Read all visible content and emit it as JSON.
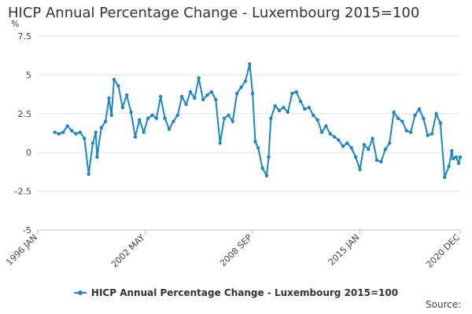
{
  "page": {
    "title": "HICP Annual Percentage Change - Luxembourg 2015=100",
    "legend_label": "HICP Annual Percentage Change - Luxembourg 2015=100",
    "source_label": "Source:"
  },
  "colors": {
    "series": "#1a86c8",
    "grid": "#e3e3e3",
    "axis": "#bfbfbf"
  },
  "chart_data": {
    "type": "line",
    "title": "HICP Annual Percentage Change - Luxembourg 2015=100",
    "xlabel": "",
    "ylabel": "%",
    "ylim": [
      -5,
      7.5
    ],
    "yticks": [
      -5,
      -2.5,
      0,
      2.5,
      5,
      7.5
    ],
    "ytick_labels": [
      "-5",
      "-2.5",
      "0",
      "2.5",
      "5",
      "7.5"
    ],
    "xlim": [
      1996.0,
      2020.917
    ],
    "xticks": [
      {
        "label": "1996 JAN",
        "x": 1996.0
      },
      {
        "label": "2002 MAY",
        "x": 2002.333
      },
      {
        "label": "2008 SEP",
        "x": 2008.667
      },
      {
        "label": "2015 JAN",
        "x": 2015.0
      },
      {
        "label": "2020 DEC",
        "x": 2020.917
      }
    ],
    "grid": true,
    "legend": "bottom-center",
    "series": [
      {
        "name": "HICP Annual Percentage Change - Luxembourg 2015=100",
        "x": [
          1997.0,
          1997.25,
          1997.5,
          1997.75,
          1998.0,
          1998.25,
          1998.5,
          1998.75,
          1999.0,
          1999.25,
          1999.42,
          1999.5,
          1999.75,
          2000.0,
          2000.2,
          2000.35,
          2000.5,
          2000.75,
          2001.0,
          2001.25,
          2001.5,
          2001.75,
          2002.0,
          2002.25,
          2002.5,
          2002.75,
          2003.0,
          2003.25,
          2003.5,
          2003.75,
          2004.0,
          2004.25,
          2004.5,
          2004.75,
          2005.0,
          2005.25,
          2005.5,
          2005.75,
          2006.0,
          2006.25,
          2006.5,
          2006.75,
          2007.0,
          2007.25,
          2007.5,
          2007.75,
          2008.0,
          2008.25,
          2008.5,
          2008.67,
          2008.83,
          2009.0,
          2009.25,
          2009.5,
          2009.62,
          2009.75,
          2010.0,
          2010.25,
          2010.5,
          2010.75,
          2011.0,
          2011.25,
          2011.5,
          2011.75,
          2012.0,
          2012.25,
          2012.5,
          2012.75,
          2013.0,
          2013.25,
          2013.5,
          2013.75,
          2014.0,
          2014.25,
          2014.5,
          2014.75,
          2015.0,
          2015.25,
          2015.5,
          2015.75,
          2016.0,
          2016.25,
          2016.5,
          2016.75,
          2017.0,
          2017.25,
          2017.5,
          2017.75,
          2018.0,
          2018.25,
          2018.5,
          2018.75,
          2019.0,
          2019.25,
          2019.5,
          2019.75,
          2020.0,
          2020.25,
          2020.42,
          2020.5,
          2020.67,
          2020.83,
          2020.917
        ],
        "values": [
          1.3,
          1.2,
          1.3,
          1.7,
          1.4,
          1.2,
          1.3,
          0.9,
          -1.4,
          0.6,
          1.3,
          -0.3,
          1.6,
          2.0,
          3.5,
          2.4,
          4.7,
          4.3,
          2.9,
          3.7,
          2.6,
          1.0,
          2.1,
          1.3,
          2.2,
          2.4,
          2.2,
          3.6,
          2.2,
          1.5,
          2.0,
          2.4,
          3.6,
          3.1,
          3.9,
          3.5,
          4.8,
          3.4,
          3.7,
          3.9,
          3.4,
          0.6,
          2.2,
          2.4,
          2.0,
          3.8,
          4.2,
          4.6,
          5.7,
          3.8,
          0.7,
          0.3,
          -1.0,
          -1.5,
          -0.3,
          2.2,
          3.0,
          2.7,
          2.9,
          2.6,
          3.8,
          3.9,
          3.3,
          2.8,
          2.9,
          2.4,
          2.1,
          1.3,
          1.7,
          1.2,
          1.0,
          0.8,
          0.4,
          0.6,
          0.3,
          -0.3,
          -1.1,
          0.5,
          0.2,
          0.9,
          -0.5,
          -0.6,
          0.2,
          0.6,
          2.6,
          2.2,
          2.0,
          1.4,
          1.3,
          2.4,
          2.8,
          2.2,
          1.1,
          1.2,
          2.5,
          1.9,
          -1.6,
          -0.9,
          0.1,
          -0.4,
          -0.3,
          -0.7,
          -0.3
        ]
      }
    ]
  }
}
